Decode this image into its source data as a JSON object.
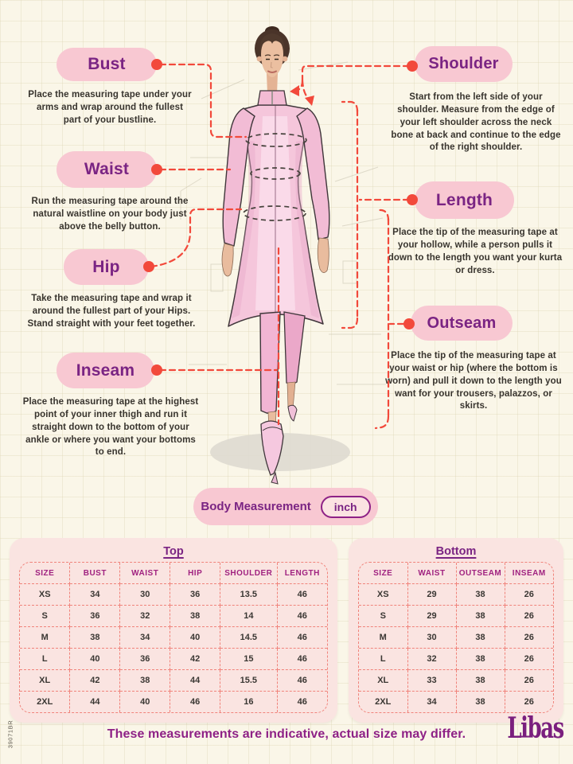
{
  "colors": {
    "background_cream": "#FAF6E8",
    "pill_pink": "#F8C8D2",
    "label_purple": "#7A2483",
    "header_magenta": "#A02280",
    "accent_red": "#F2493B",
    "panel_pink": "#FAE4E1",
    "table_border": "#F0837B"
  },
  "callouts": {
    "bust": {
      "label": "Bust",
      "description": "Place the measuring tape under your arms and wrap around the fullest part of your bustline."
    },
    "waist": {
      "label": "Waist",
      "description": "Run the measuring tape around the natural waistline on your body just above the belly button."
    },
    "hip": {
      "label": "Hip",
      "description": "Take the measuring tape and wrap it around the fullest part of your Hips. Stand straight with your feet together."
    },
    "inseam": {
      "label": "Inseam",
      "description": "Place the measuring tape at the highest point of your inner thigh and run it straight down to the bottom of your ankle or where you want your bottoms to end."
    },
    "shoulder": {
      "label": "Shoulder",
      "description": "Start from the left side of your shoulder. Measure from the edge of your left shoulder across the neck bone at back and continue to the edge of the right shoulder."
    },
    "length": {
      "label": "Length",
      "description": "Place the tip of the measuring tape at your hollow, while a person pulls it down to the length you want your kurta or dress."
    },
    "outseam": {
      "label": "Outseam",
      "description": "Place the tip of the measuring tape at your waist or hip (where the bottom is worn) and pull it down to the length you want for your trousers, palazzos, or skirts."
    }
  },
  "unit_bar": {
    "label": "Body Measurement",
    "unit": "inch"
  },
  "tables": {
    "top": {
      "title": "Top",
      "columns": [
        "SIZE",
        "BUST",
        "WAIST",
        "HIP",
        "SHOULDER",
        "LENGTH"
      ],
      "rows": [
        [
          "XS",
          "34",
          "30",
          "36",
          "13.5",
          "46"
        ],
        [
          "S",
          "36",
          "32",
          "38",
          "14",
          "46"
        ],
        [
          "M",
          "38",
          "34",
          "40",
          "14.5",
          "46"
        ],
        [
          "L",
          "40",
          "36",
          "42",
          "15",
          "46"
        ],
        [
          "XL",
          "42",
          "38",
          "44",
          "15.5",
          "46"
        ],
        [
          "2XL",
          "44",
          "40",
          "46",
          "16",
          "46"
        ]
      ]
    },
    "bottom": {
      "title": "Bottom",
      "columns": [
        "SIZE",
        "WAIST",
        "OUTSEAM",
        "INSEAM"
      ],
      "rows": [
        [
          "XS",
          "29",
          "38",
          "26"
        ],
        [
          "S",
          "29",
          "38",
          "26"
        ],
        [
          "M",
          "30",
          "38",
          "26"
        ],
        [
          "L",
          "32",
          "38",
          "26"
        ],
        [
          "XL",
          "33",
          "38",
          "26"
        ],
        [
          "2XL",
          "34",
          "38",
          "26"
        ]
      ]
    }
  },
  "footer": {
    "note": "These measurements are indicative, actual size may differ.",
    "brand": "Libas",
    "side_code": "39071BR"
  }
}
